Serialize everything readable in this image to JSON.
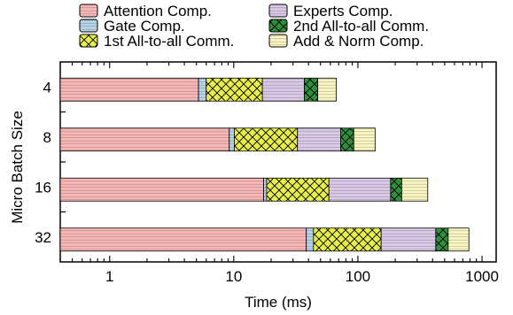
{
  "chart_data": {
    "type": "bar",
    "orientation": "horizontal",
    "stacked": true,
    "x_scale": "log",
    "xlabel": "Time (ms)",
    "ylabel": "Micro Batch Size",
    "xlim": [
      0.4,
      1300
    ],
    "xticks": [
      1,
      10,
      100,
      1000
    ],
    "xtick_labels": [
      "1",
      "10",
      "100",
      "1000"
    ],
    "categories": [
      "4",
      "8",
      "16",
      "32"
    ],
    "legend_position": "top",
    "series": [
      {
        "name": "Attention Comp.",
        "color": "#f8b7b7",
        "pattern": "horizontal-lines",
        "values": [
          4.8,
          8.8,
          17.0,
          38.0
        ]
      },
      {
        "name": "Gate Comp.",
        "color": "#b6d3e8",
        "pattern": "horizontal-lines",
        "values": [
          0.8,
          0.9,
          1.0,
          5.5
        ]
      },
      {
        "name": "1st All-to-all Comm.",
        "color": "#e9ef4a",
        "pattern": "crosshatch",
        "values": [
          11.0,
          22.5,
          40.0,
          110.0
        ]
      },
      {
        "name": "Experts Comp.",
        "color": "#d9c8e6",
        "pattern": "horizontal-lines",
        "values": [
          20.0,
          40.0,
          125.0,
          270.0
        ]
      },
      {
        "name": "2nd All-to-all Comm.",
        "color": "#2f8f3a",
        "pattern": "crosshatch",
        "values": [
          10.5,
          20.0,
          42.0,
          110.0
        ]
      },
      {
        "name": "Add & Norm Comp.",
        "color": "#faf6c3",
        "pattern": "horizontal-lines",
        "values": [
          19.5,
          45.0,
          140.0,
          250.0
        ]
      }
    ]
  }
}
